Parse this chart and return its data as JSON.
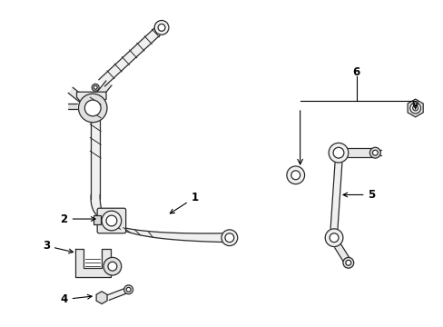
{
  "background_color": "#ffffff",
  "line_color": "#2a2a2a",
  "fig_width": 4.89,
  "fig_height": 3.6,
  "dpi": 100,
  "label_fontsize": 8.5
}
